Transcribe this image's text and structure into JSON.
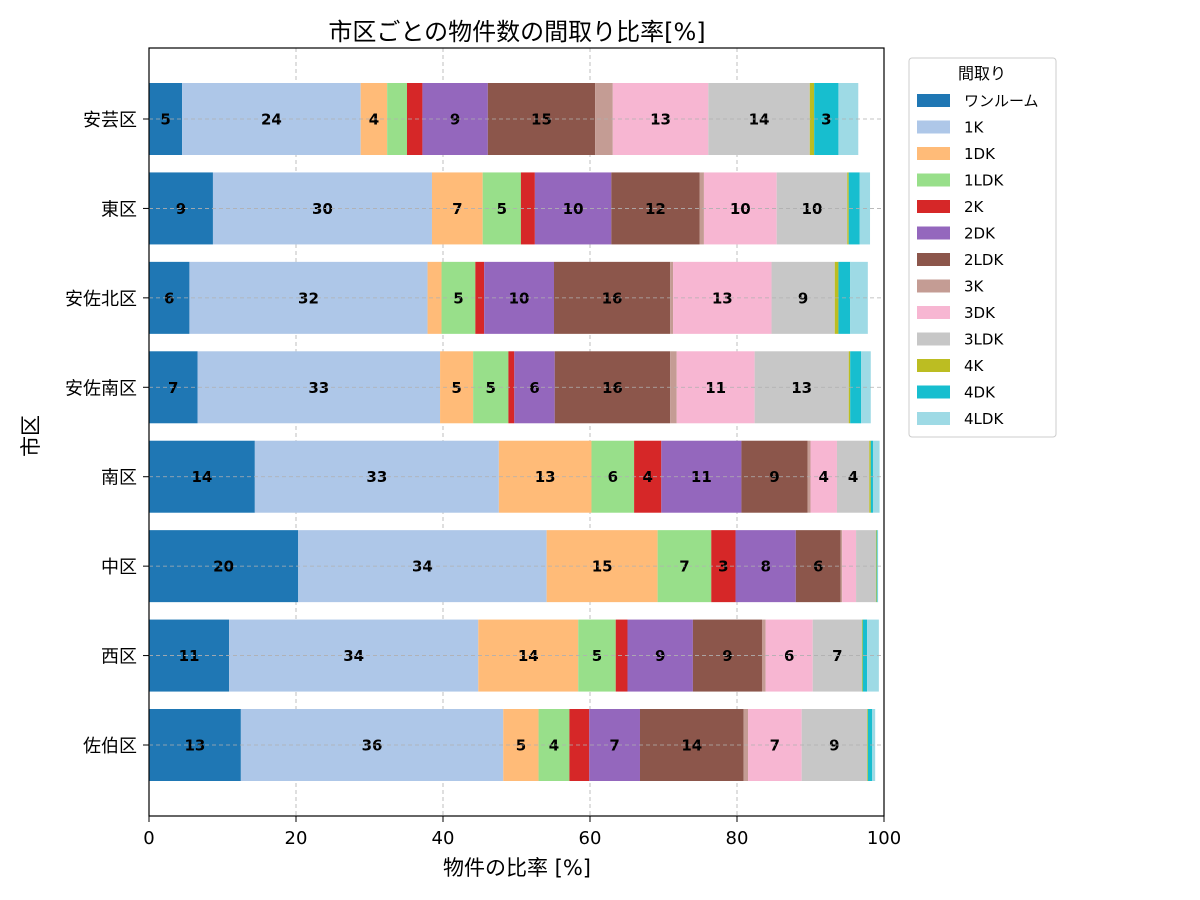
{
  "chart_data": {
    "type": "bar",
    "orientation": "horizontal",
    "stacked": true,
    "title": "市区ごとの物件数の間取り比率[%]",
    "xlabel": "物件の比率 [%]",
    "ylabel": "市区",
    "xlim": [
      0,
      100
    ],
    "xticks": [
      0,
      20,
      40,
      60,
      80,
      100
    ],
    "grid": true,
    "legend_title": "間取り",
    "legend_position": "outside-top-right",
    "categories": [
      "安芸区",
      "東区",
      "安佐北区",
      "安佐南区",
      "南区",
      "中区",
      "西区",
      "佐伯区"
    ],
    "series": [
      {
        "name": "ワンルーム",
        "color": "#1f77b4",
        "values": [
          4.5,
          8.7,
          5.5,
          6.6,
          14.4,
          20.3,
          10.9,
          12.5
        ]
      },
      {
        "name": "1K",
        "color": "#aec7e8",
        "values": [
          24.3,
          29.8,
          32.4,
          33.0,
          33.2,
          33.8,
          33.9,
          35.7
        ]
      },
      {
        "name": "1DK",
        "color": "#ffbb78",
        "values": [
          3.6,
          6.9,
          1.9,
          4.5,
          12.6,
          15.1,
          13.6,
          4.8
        ]
      },
      {
        "name": "1LDK",
        "color": "#98df8a",
        "values": [
          2.7,
          5.2,
          4.6,
          4.8,
          5.8,
          7.3,
          5.1,
          4.2
        ]
      },
      {
        "name": "2K",
        "color": "#d62728",
        "values": [
          2.1,
          1.9,
          1.2,
          0.8,
          3.7,
          3.3,
          1.6,
          2.7
        ]
      },
      {
        "name": "2DK",
        "color": "#9467bd",
        "values": [
          8.9,
          10.4,
          9.5,
          5.5,
          10.9,
          8.2,
          8.9,
          6.9
        ]
      },
      {
        "name": "2LDK",
        "color": "#8c564b",
        "values": [
          14.6,
          12.0,
          15.8,
          15.7,
          9.0,
          6.1,
          9.4,
          14.1
        ]
      },
      {
        "name": "3K",
        "color": "#c49c94",
        "values": [
          2.4,
          0.6,
          0.4,
          0.9,
          0.4,
          0.2,
          0.5,
          0.6
        ]
      },
      {
        "name": "3DK",
        "color": "#f7b6d2",
        "values": [
          13.0,
          9.9,
          13.4,
          10.6,
          3.6,
          1.9,
          6.4,
          7.3
        ]
      },
      {
        "name": "3LDK",
        "color": "#c7c7c7",
        "values": [
          13.8,
          9.6,
          8.6,
          12.8,
          4.4,
          2.7,
          6.7,
          8.9
        ]
      },
      {
        "name": "4K",
        "color": "#bcbd22",
        "values": [
          0.6,
          0.2,
          0.5,
          0.2,
          0.2,
          0.1,
          0.1,
          0.1
        ]
      },
      {
        "name": "4DK",
        "color": "#17becf",
        "values": [
          3.3,
          1.5,
          1.6,
          1.5,
          0.3,
          0.1,
          0.6,
          0.6
        ]
      },
      {
        "name": "4LDK",
        "color": "#9edae5",
        "values": [
          2.7,
          1.4,
          2.4,
          1.3,
          0.9,
          0.1,
          1.6,
          0.4
        ]
      }
    ]
  }
}
